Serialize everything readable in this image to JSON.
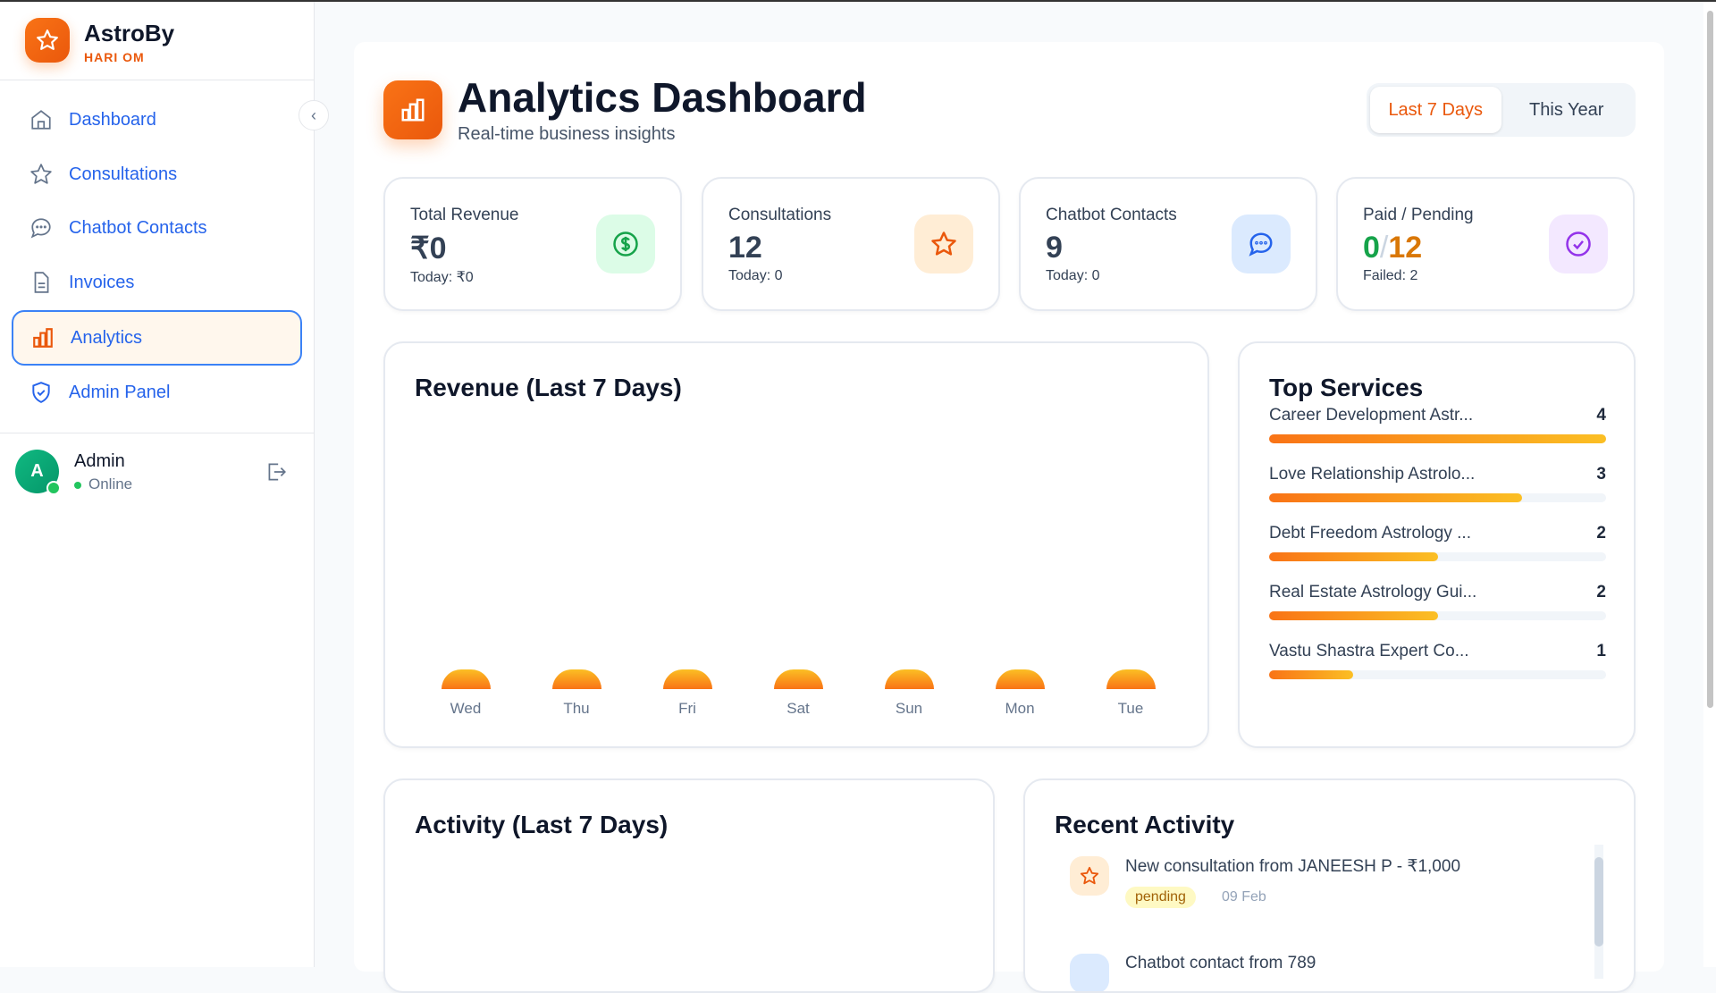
{
  "brand": {
    "name": "AstroBy",
    "subtitle": "HARI OM"
  },
  "sidebar": {
    "items": [
      {
        "label": "Dashboard",
        "icon": "home-icon",
        "active": false
      },
      {
        "label": "Consultations",
        "icon": "star-icon",
        "active": false
      },
      {
        "label": "Chatbot Contacts",
        "icon": "chat-icon",
        "active": false
      },
      {
        "label": "Invoices",
        "icon": "document-icon",
        "active": false
      },
      {
        "label": "Analytics",
        "icon": "bar-chart-icon",
        "active": true
      },
      {
        "label": "Admin Panel",
        "icon": "shield-icon",
        "active": false
      }
    ],
    "user": {
      "name": "Admin",
      "initial": "A",
      "status": "Online"
    }
  },
  "header": {
    "title": "Analytics Dashboard",
    "subtitle": "Real-time business insights",
    "ranges": [
      "Last 7 Days",
      "This Year"
    ],
    "selected_range": "Last 7 Days"
  },
  "stats": [
    {
      "label": "Total Revenue",
      "value": "₹0",
      "sub": "Today: ₹0",
      "icon": "dollar-icon",
      "color": "#16a34a"
    },
    {
      "label": "Consultations",
      "value": "12",
      "sub": "Today: 0",
      "icon": "star-icon",
      "color": "#ea580c"
    },
    {
      "label": "Chatbot Contacts",
      "value": "9",
      "sub": "Today: 0",
      "icon": "chat-icon",
      "color": "#2563eb"
    },
    {
      "label": "Paid / Pending",
      "paid": "0",
      "separator": "/",
      "pending": "12",
      "sub": "Failed: 2",
      "icon": "check-circle-icon",
      "color": "#9333ea"
    }
  ],
  "chart_data": {
    "type": "bar",
    "title": "Revenue (Last 7 Days)",
    "categories": [
      "Wed",
      "Thu",
      "Fri",
      "Sat",
      "Sun",
      "Mon",
      "Tue"
    ],
    "values": [
      0,
      0,
      0,
      0,
      0,
      0,
      0
    ],
    "colors": [
      "#fbbf24",
      "#f97316"
    ]
  },
  "top_services": {
    "title": "Top Services",
    "max": 4,
    "items": [
      {
        "name": "Career Development Astr...",
        "count": 4
      },
      {
        "name": "Love Relationship Astrolo...",
        "count": 3
      },
      {
        "name": "Debt Freedom Astrology ...",
        "count": 2
      },
      {
        "name": "Real Estate Astrology Gui...",
        "count": 2
      },
      {
        "name": "Vastu Shastra Expert Co...",
        "count": 1
      }
    ]
  },
  "activity": {
    "title": "Activity (Last 7 Days)"
  },
  "recent": {
    "title": "Recent Activity",
    "items": [
      {
        "text": "New consultation from JANEESH P - ₹1,000",
        "status": "pending",
        "date": "09 Feb",
        "icon": "star-icon"
      },
      {
        "text": "Chatbot contact from 789",
        "icon": "chat-icon"
      }
    ]
  }
}
